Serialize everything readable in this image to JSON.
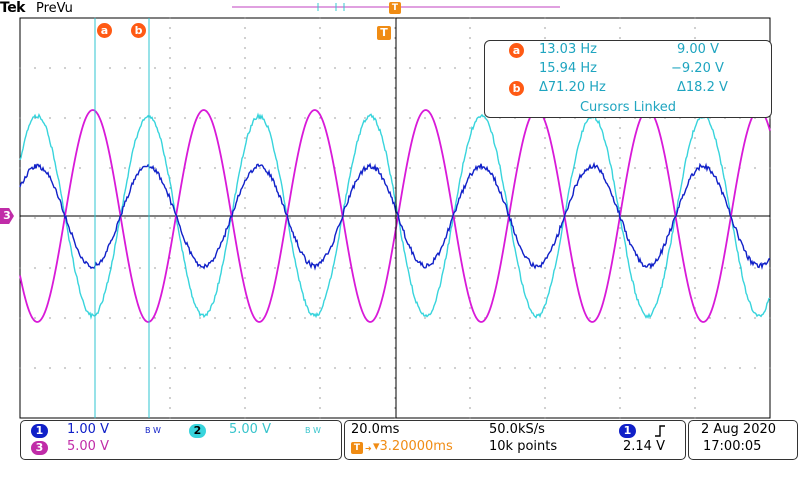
{
  "header": {
    "brand": "Tek",
    "mode": "PreVu"
  },
  "cursors": {
    "a_label": "a",
    "b_label": "b",
    "trigger_label": "T"
  },
  "measurement": {
    "a_freq": "13.03 Hz",
    "a_volt": "9.00 V",
    "b_freq": "15.94 Hz",
    "b_volt": "−9.20 V",
    "delta_freq": "Δ71.20 Hz",
    "delta_volt": "Δ18.2 V",
    "status": "Cursors Linked"
  },
  "channels": {
    "ch1": {
      "num": "1",
      "scale": "1.00 V",
      "bw": "B W",
      "color": "#1020c8"
    },
    "ch2": {
      "num": "2",
      "scale": "5.00 V",
      "bw": "B W",
      "color": "#38d4dc"
    },
    "ch3": {
      "num": "3",
      "scale": "5.00 V",
      "color": "#d81ad8"
    }
  },
  "timebase": {
    "scale": "20.0ms",
    "sample_rate": "50.0kS/s",
    "trigger_pos": "▾3.20000ms",
    "record_length": "10k points"
  },
  "trigger": {
    "source": "1",
    "slope_icon": "rising-edge",
    "level": "2.14 V"
  },
  "datetime": {
    "date": "2 Aug 2020",
    "time": "17:00:05"
  },
  "colors": {
    "grid": "#000000",
    "cursor": "#2fc6d0",
    "accent": "#ff5a14",
    "ch3_marker": "#c02ca8"
  }
}
